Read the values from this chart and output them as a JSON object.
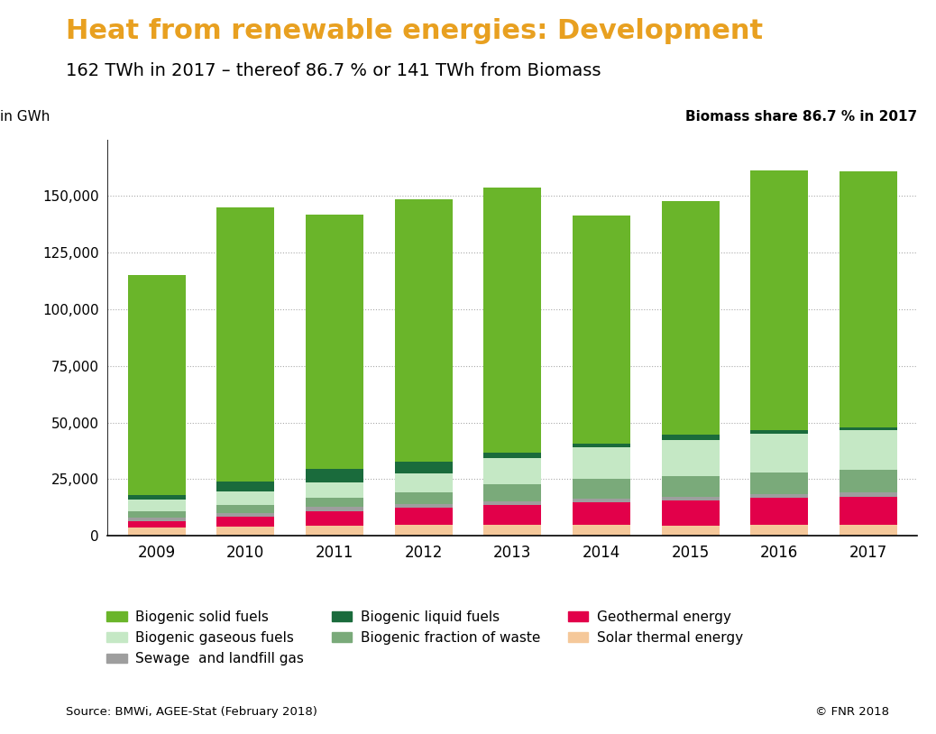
{
  "title": "Heat from renewable energies: Development",
  "subtitle": "162 TWh in 2017 – thereof 86.7 % or 141 TWh from Biomass",
  "ylabel": "in GWh",
  "annotation": "Biomass share 86.7 % in 2017",
  "source": "Source: BMWi, AGEE-Stat (February 2018)",
  "copyright": "© FNR 2018",
  "years": [
    2009,
    2010,
    2011,
    2012,
    2013,
    2014,
    2015,
    2016,
    2017
  ],
  "series": {
    "Solar thermal energy": {
      "color": "#f5c89a",
      "values": [
        3500,
        4000,
        4500,
        5000,
        5000,
        4800,
        4500,
        4800,
        4800
      ]
    },
    "Geothermal energy": {
      "color": "#e2004a",
      "values": [
        3000,
        4500,
        6500,
        7500,
        8500,
        10000,
        11000,
        12000,
        12500
      ]
    },
    "Sewage  and landfill gas": {
      "color": "#9e9e9e",
      "values": [
        1500,
        1600,
        1700,
        1700,
        1700,
        1700,
        1700,
        1700,
        1700
      ]
    },
    "Biogenic fraction of waste": {
      "color": "#7aaa7a",
      "values": [
        3000,
        3500,
        4000,
        5000,
        7500,
        8500,
        9000,
        9500,
        10000
      ]
    },
    "Biogenic gaseous fuels": {
      "color": "#c5e8c5",
      "values": [
        5000,
        6000,
        7000,
        8500,
        11500,
        14000,
        16000,
        17000,
        17500
      ]
    },
    "Biogenic liquid fuels": {
      "color": "#1a6b3c",
      "values": [
        2000,
        4500,
        6000,
        5000,
        2500,
        1500,
        2500,
        1500,
        1500
      ]
    },
    "Biogenic solid fuels": {
      "color": "#6ab52a",
      "values": [
        97000,
        121000,
        112000,
        116000,
        117000,
        101000,
        103000,
        115000,
        113000
      ]
    }
  },
  "ylim": [
    0,
    175000
  ],
  "yticks": [
    0,
    25000,
    50000,
    75000,
    100000,
    125000,
    150000
  ],
  "title_color": "#e8a020",
  "background_color": "#ffffff",
  "title_fontsize": 22,
  "subtitle_fontsize": 14,
  "axis_fontsize": 11,
  "legend_order": [
    "Biogenic solid fuels",
    "Biogenic gaseous fuels",
    "Sewage  and landfill gas",
    "Biogenic liquid fuels",
    "Biogenic fraction of waste",
    "Geothermal energy",
    "Solar thermal energy"
  ]
}
